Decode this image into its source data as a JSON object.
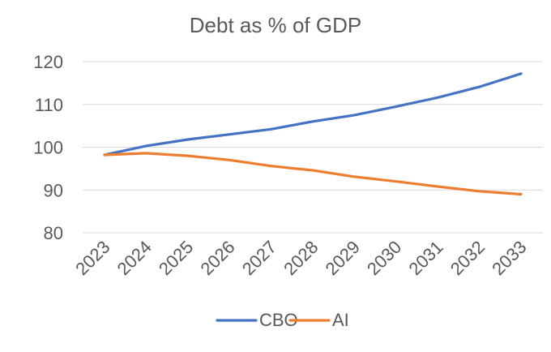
{
  "chart_data": {
    "type": "line",
    "title": "Debt as % of GDP",
    "xlabel": "",
    "ylabel": "",
    "categories": [
      "2023",
      "2024",
      "2025",
      "2026",
      "2027",
      "2028",
      "2029",
      "2030",
      "2031",
      "2032",
      "2033"
    ],
    "series": [
      {
        "name": "CBO",
        "color": "#4472C4",
        "values": [
          98.2,
          100.3,
          101.8,
          103.0,
          104.2,
          106.0,
          107.5,
          109.5,
          111.6,
          114.1,
          117.2
        ]
      },
      {
        "name": "AI",
        "color": "#ED7D31",
        "values": [
          98.2,
          98.6,
          98.0,
          97.0,
          95.6,
          94.6,
          93.1,
          92.0,
          90.8,
          89.7,
          89.0
        ]
      }
    ],
    "ylim": [
      80,
      120
    ],
    "yticks": [
      80,
      90,
      100,
      110,
      120
    ],
    "grid": true,
    "legend": "bottom",
    "colors": {
      "gridline": "#D9D9D9",
      "text": "#595959"
    }
  }
}
